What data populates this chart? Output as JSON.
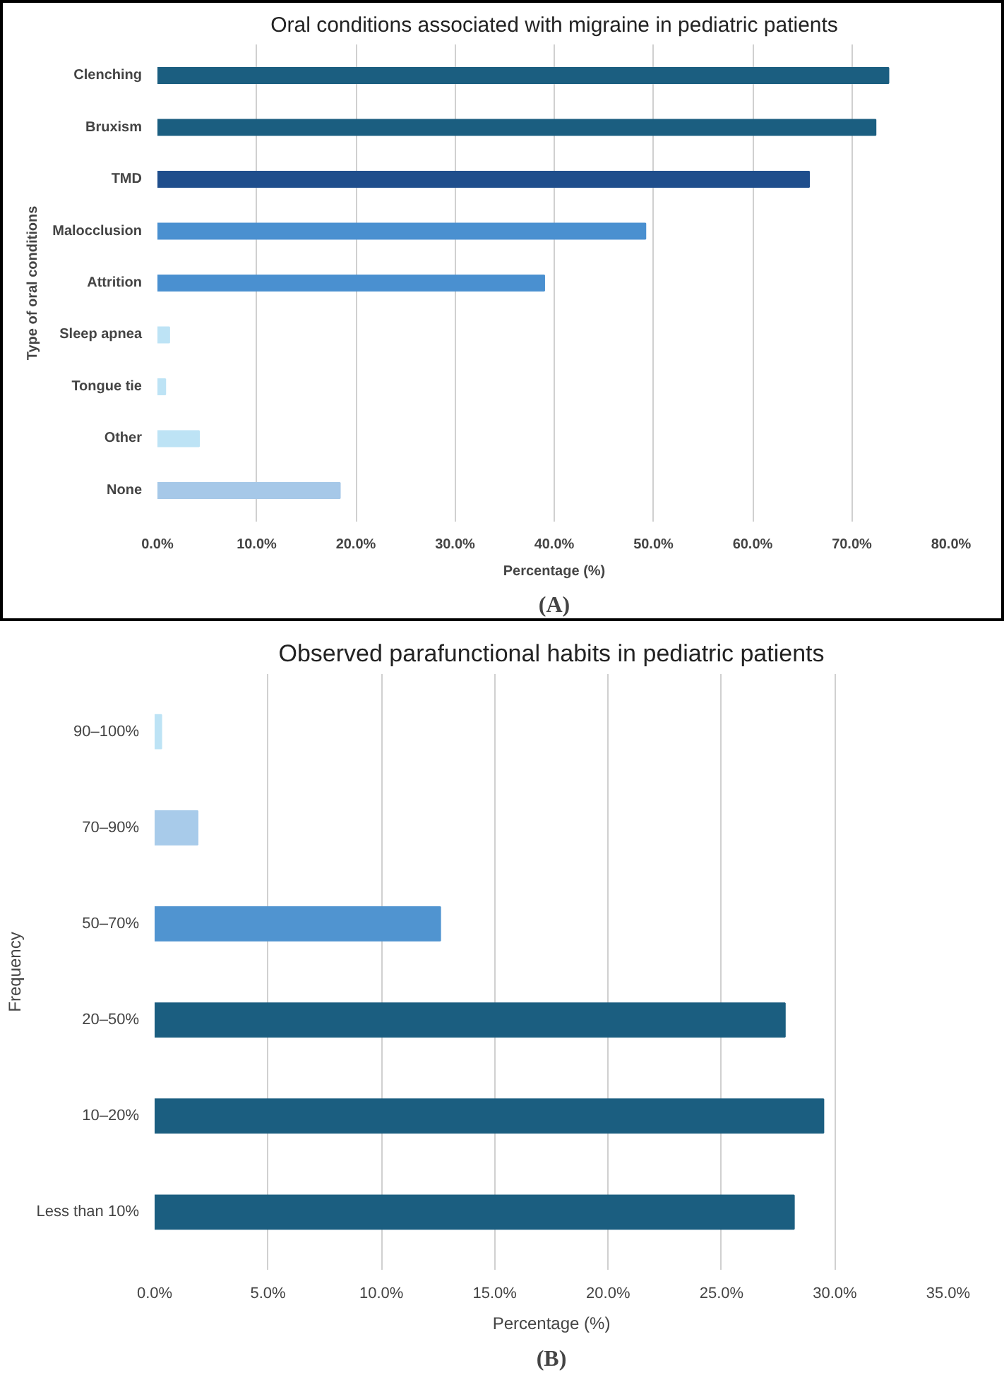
{
  "chart_data": [
    {
      "type": "bar",
      "orientation": "horizontal",
      "title": "Oral conditions associated with migraine in pediatric patients",
      "xlabel": "Percentage (%)",
      "ylabel": "Type of oral conditions",
      "categories": [
        "Clenching",
        "Bruxism",
        "TMD",
        "Malocclusion",
        "Attrition",
        "Sleep apnea",
        "Tongue tie",
        "Other",
        "None"
      ],
      "values": [
        73.7,
        72.4,
        65.7,
        49.2,
        39.0,
        1.2,
        0.8,
        4.2,
        18.4
      ],
      "colors": [
        "#1b5e80",
        "#1b5e80",
        "#1f4e8c",
        "#4a90d0",
        "#4a90d0",
        "#bde3f5",
        "#bde3f5",
        "#bde3f5",
        "#a6c8e8"
      ],
      "xlim": [
        0,
        80
      ],
      "xticks": [
        {
          "value": 0,
          "label": "0.0%"
        },
        {
          "value": 10,
          "label": "10.0%"
        },
        {
          "value": 20,
          "label": "20.0%"
        },
        {
          "value": 30,
          "label": "30.0%"
        },
        {
          "value": 40,
          "label": "40.0%"
        },
        {
          "value": 50,
          "label": "50.0%"
        },
        {
          "value": 60,
          "label": "60.0%"
        },
        {
          "value": 70,
          "label": "70.0%"
        },
        {
          "value": 80,
          "label": "80.0%"
        }
      ],
      "grid": "x",
      "annotations": [
        "(A)"
      ]
    },
    {
      "type": "bar",
      "orientation": "horizontal",
      "title": "Observed parafunctional habits in pediatric patients",
      "xlabel": "Percentage (%)",
      "ylabel": "Frequency",
      "categories": [
        "90–100%",
        "70–90%",
        "50–70%",
        "20–50%",
        "10–20%",
        "Less than 10%"
      ],
      "values": [
        0.3,
        1.9,
        12.6,
        27.8,
        29.5,
        28.2
      ],
      "colors": [
        "#bde3f5",
        "#a8cbea",
        "#5094d0",
        "#1b5e80",
        "#1b5e80",
        "#1b5e80"
      ],
      "xlim": [
        0,
        35
      ],
      "xticks": [
        {
          "value": 0,
          "label": "0.0%"
        },
        {
          "value": 5,
          "label": "5.0%"
        },
        {
          "value": 10,
          "label": "10.0%"
        },
        {
          "value": 15,
          "label": "15.0%"
        },
        {
          "value": 20,
          "label": "20.0%"
        },
        {
          "value": 25,
          "label": "25.0%"
        },
        {
          "value": 30,
          "label": "30.0%"
        },
        {
          "value": 35,
          "label": "35.0%"
        }
      ],
      "grid": "x",
      "annotations": [
        "(B)"
      ]
    }
  ]
}
